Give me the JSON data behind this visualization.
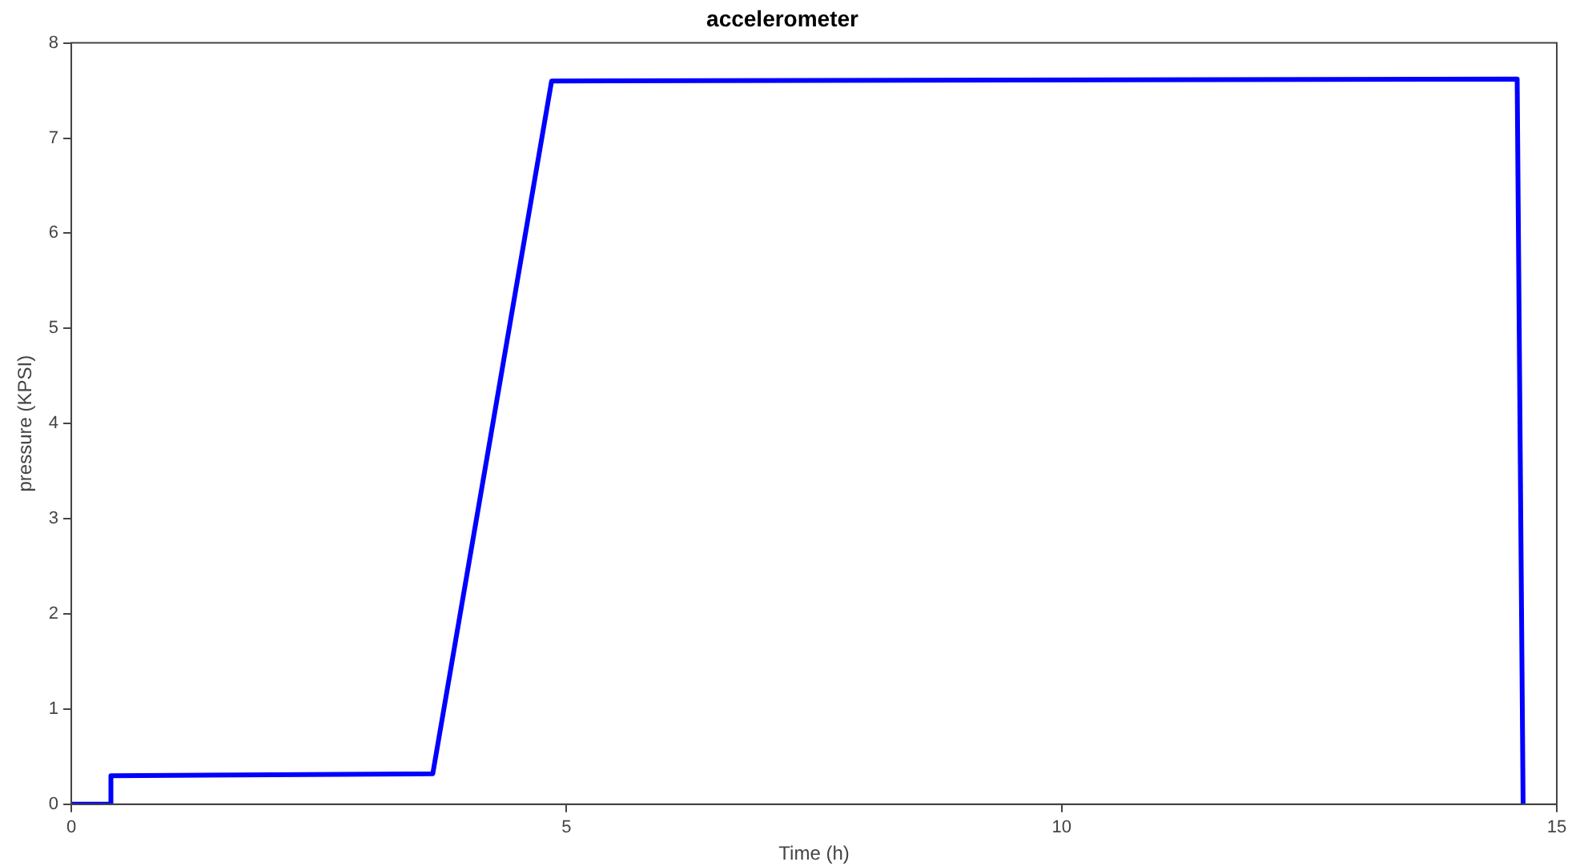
{
  "chart_data": {
    "type": "line",
    "title": "accelerometer",
    "xlabel": "Time (h)",
    "ylabel": "pressure (KPSI)",
    "xlim": [
      0,
      15
    ],
    "xticks": [
      0,
      5,
      10,
      15
    ],
    "ylim": [
      0,
      8
    ],
    "yticks": [
      0,
      1,
      2,
      3,
      4,
      5,
      6,
      7,
      8
    ],
    "grid": false,
    "legend": false,
    "marker": "none",
    "line_style": "solid",
    "series": [
      {
        "color": "#0000ff",
        "x": [
          0,
          0.4,
          0.4,
          3.65,
          4.85,
          14.6,
          14.66
        ],
        "values": [
          0,
          0,
          0.3,
          0.32,
          7.6,
          7.62,
          0
        ]
      }
    ]
  }
}
